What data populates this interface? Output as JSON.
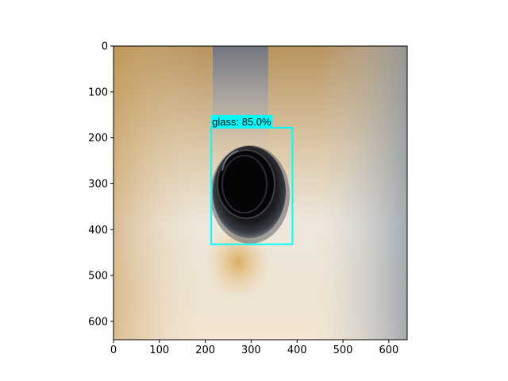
{
  "image": {
    "description_kind": "photo",
    "x_range": [
      0,
      640
    ],
    "y_range": [
      0,
      640
    ]
  },
  "axes": {
    "x_ticks": [
      "0",
      "100",
      "200",
      "300",
      "400",
      "500",
      "600"
    ],
    "y_ticks": [
      "0",
      "100",
      "200",
      "300",
      "400",
      "500",
      "600"
    ],
    "frame_color": "#000000"
  },
  "detection": {
    "label": "glass: 85.0%",
    "box_color": "#00ffff",
    "bbox_data": {
      "x0": 213,
      "y0": 178,
      "x1": 390,
      "y1": 432
    }
  }
}
